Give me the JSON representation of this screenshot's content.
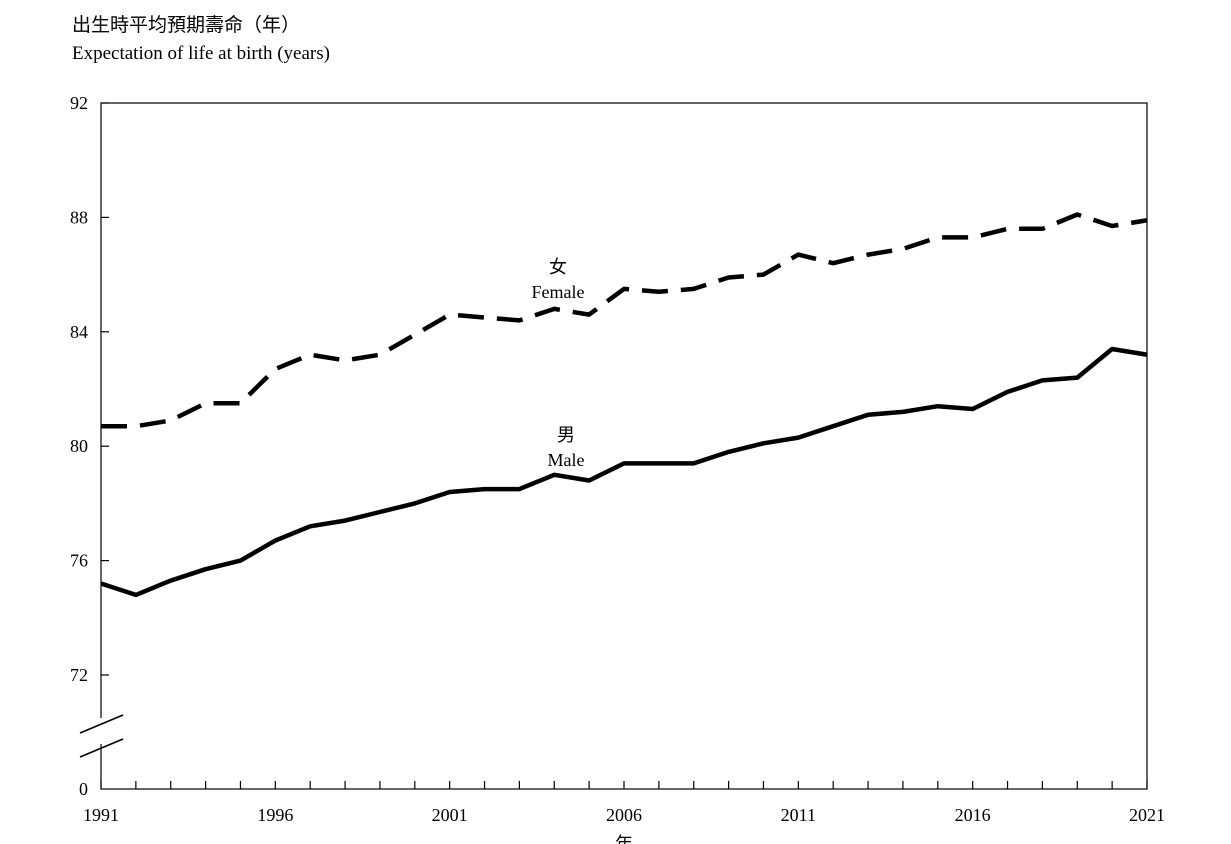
{
  "chart_data": {
    "type": "line",
    "ylabel": {
      "zh": "出生時平均預期壽命（年）",
      "en": "Expectation of life at birth (years)"
    },
    "xlabel": "年",
    "x_tick_labels": [
      "1991",
      "1996",
      "2001",
      "2006",
      "2011",
      "2016",
      "2021"
    ],
    "y_tick_labels": [
      "92",
      "88",
      "84",
      "80",
      "76",
      "72",
      "0"
    ],
    "y_axis_break": true,
    "ylim": [
      72,
      92
    ],
    "xlim": [
      1991,
      2021
    ],
    "grid": false,
    "x": [
      1991,
      1992,
      1993,
      1994,
      1995,
      1996,
      1997,
      1998,
      1999,
      2000,
      2001,
      2002,
      2003,
      2004,
      2005,
      2006,
      2007,
      2008,
      2009,
      2010,
      2011,
      2012,
      2013,
      2014,
      2015,
      2016,
      2017,
      2018,
      2019,
      2020,
      2021
    ],
    "series": [
      {
        "name": "Female",
        "name_zh": "女",
        "style": "dashed",
        "values": [
          80.7,
          80.7,
          80.9,
          81.5,
          81.5,
          82.7,
          83.2,
          83.0,
          83.2,
          83.9,
          84.6,
          84.5,
          84.4,
          84.8,
          84.6,
          85.5,
          85.4,
          85.5,
          85.9,
          86.0,
          86.7,
          86.4,
          86.7,
          86.9,
          87.3,
          87.3,
          87.6,
          87.6,
          88.1,
          87.7,
          87.9
        ]
      },
      {
        "name": "Male",
        "name_zh": "男",
        "style": "solid",
        "values": [
          75.2,
          74.8,
          75.3,
          75.7,
          76.0,
          76.7,
          77.2,
          77.4,
          77.7,
          78.0,
          78.4,
          78.5,
          78.5,
          79.0,
          78.8,
          79.4,
          79.4,
          79.4,
          79.8,
          80.1,
          80.3,
          80.7,
          81.1,
          81.2,
          81.4,
          81.3,
          81.9,
          82.3,
          82.4,
          83.4,
          83.2
        ]
      }
    ]
  }
}
